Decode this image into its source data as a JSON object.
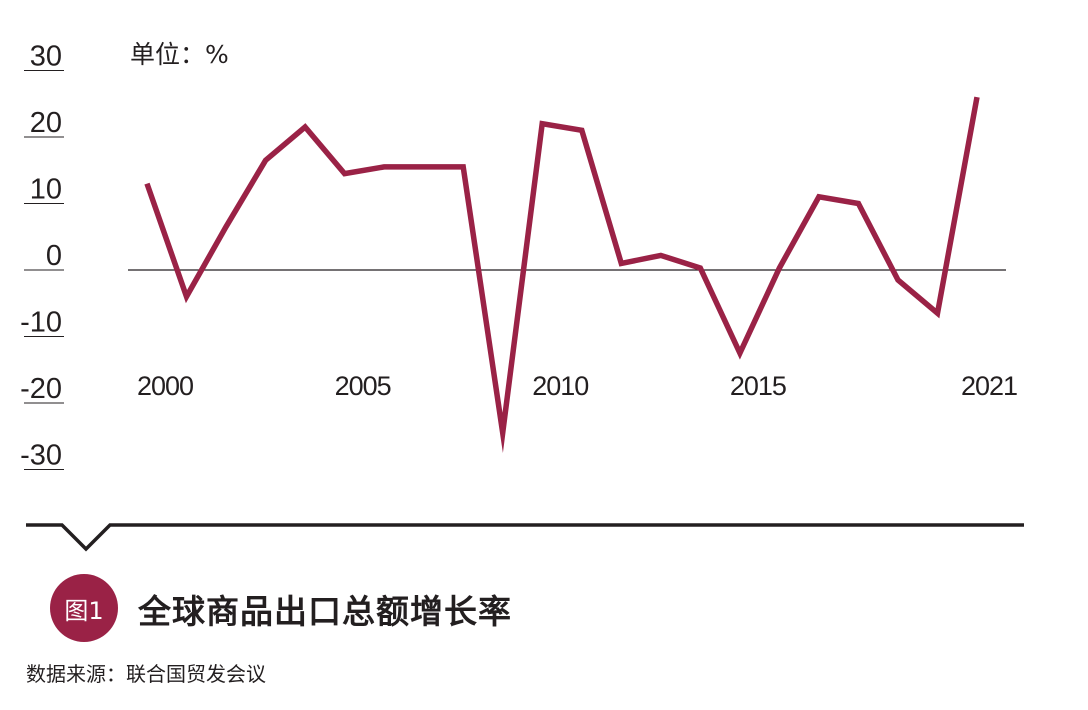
{
  "chart_data": {
    "type": "line",
    "unit_label": "单位：%",
    "y_ticks": [
      "30",
      "20",
      "10",
      "0",
      "-10",
      "-20",
      "-30"
    ],
    "y_tick_values": [
      30,
      20,
      10,
      0,
      -10,
      -20,
      -30
    ],
    "x_tick_labels": [
      "2000",
      "2005",
      "2010",
      "2015",
      "2021"
    ],
    "x_tick_years": [
      2000,
      2005,
      2010,
      2015,
      2021
    ],
    "ylim": [
      -30,
      30
    ],
    "xlim": [
      2000,
      2021
    ],
    "grid": false,
    "zero_line": true,
    "series": [
      {
        "color": "#9a2246",
        "x": [
          2000,
          2001,
          2002,
          2003,
          2004,
          2005,
          2006,
          2007,
          2008,
          2009,
          2010,
          2011,
          2012,
          2013,
          2014,
          2015,
          2016,
          2017,
          2018,
          2019,
          2020,
          2021
        ],
        "values": [
          13,
          -4,
          6.5,
          16.5,
          21.5,
          14.5,
          15.5,
          15.5,
          15.5,
          -24.5,
          22,
          21,
          1,
          2.2,
          0.3,
          -12.5,
          0.3,
          11,
          10,
          -1.5,
          -6.5,
          26
        ]
      }
    ]
  },
  "figure": {
    "badge": "图1",
    "title": "全球商品出口总额增长率",
    "source": "数据来源：联合国贸发会议"
  },
  "colors": {
    "accent": "#9a2246",
    "text": "#231f20",
    "axis": "#231f20"
  }
}
